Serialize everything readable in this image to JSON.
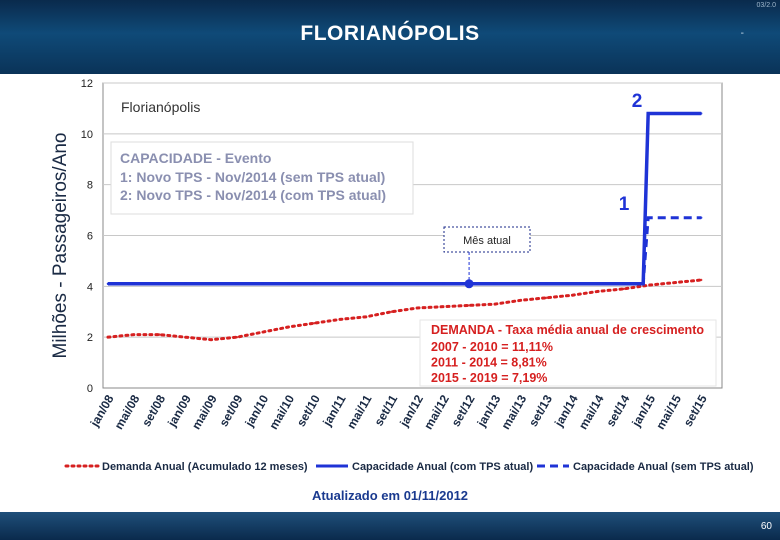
{
  "header": {
    "title": "FLORIANÓPOLIS",
    "dash": "-",
    "corner": "03/2.0"
  },
  "footer": {
    "page_number": "60"
  },
  "colors": {
    "capacity": "#1f33d6",
    "demand": "#d62020",
    "header_bg": "#0f4a78",
    "text_blue": "#1a3a8f"
  },
  "chart_data": {
    "type": "line",
    "ylabel": "Milhões - Passageiros/Ano",
    "ylim": [
      0,
      12
    ],
    "yticks": [
      0,
      2,
      4,
      6,
      8,
      10,
      12
    ],
    "grid": true,
    "x": [
      "jan/08",
      "mai/08",
      "set/08",
      "jan/09",
      "mai/09",
      "set/09",
      "jan/10",
      "mai/10",
      "set/10",
      "jan/11",
      "mai/11",
      "set/11",
      "jan/12",
      "mai/12",
      "set/12",
      "jan/13",
      "mai/13",
      "set/13",
      "jan/14",
      "mai/14",
      "set/14",
      "jan/15",
      "mai/15",
      "set/15"
    ],
    "series": [
      {
        "name": "Demanda Anual (Acumulado 12 meses)",
        "style": "dotted",
        "color": "#d62020",
        "values": [
          2.0,
          2.1,
          2.1,
          2.0,
          1.9,
          2.0,
          2.2,
          2.4,
          2.55,
          2.7,
          2.8,
          3.0,
          3.15,
          3.2,
          3.25,
          3.3,
          3.45,
          3.55,
          3.65,
          3.8,
          3.9,
          4.05,
          4.15,
          4.25
        ]
      },
      {
        "name": "Capacidade Anual (com TPS atual)",
        "style": "solid",
        "color": "#1f33d6",
        "values": [
          4.1,
          4.1,
          4.1,
          4.1,
          4.1,
          4.1,
          4.1,
          4.1,
          4.1,
          4.1,
          4.1,
          4.1,
          4.1,
          4.1,
          4.1,
          4.1,
          4.1,
          4.1,
          4.1,
          4.1,
          4.1,
          10.8,
          10.8,
          10.8
        ]
      },
      {
        "name": "Capacidade Anual (sem TPS atual)",
        "style": "dashed",
        "color": "#1f33d6",
        "values": [
          4.1,
          4.1,
          4.1,
          4.1,
          4.1,
          4.1,
          4.1,
          4.1,
          4.1,
          4.1,
          4.1,
          4.1,
          4.1,
          4.1,
          4.1,
          4.1,
          4.1,
          4.1,
          4.1,
          4.1,
          4.1,
          6.7,
          6.7,
          6.7
        ]
      }
    ],
    "current_month_point": {
      "x": "set/12",
      "y": 4.1
    },
    "chart_label": "Florianópolis",
    "event_box": {
      "title": "CAPACIDADE - Evento",
      "lines": [
        "1: Novo TPS - Nov/2014 (sem TPS atual)",
        "2: Novo TPS - Nov/2014 (com TPS atual)"
      ]
    },
    "marker_labels": [
      "2",
      "1"
    ],
    "current_month_label": "Mês atual",
    "demand_box": {
      "title": "DEMANDA - Taxa média anual de crescimento",
      "lines": [
        "2007 - 2010 = 11,11%",
        "2011 - 2014 =  8,81%",
        "2015 - 2019 =  7,19%"
      ]
    },
    "legend": [
      {
        "label": "Demanda Anual (Acumulado 12 meses)",
        "style": "dotted",
        "color": "#d62020"
      },
      {
        "label": "Capacidade Anual (com TPS atual)",
        "style": "solid",
        "color": "#1f33d6"
      },
      {
        "label": "Capacidade Anual (sem TPS atual)",
        "style": "dashed",
        "color": "#1f33d6"
      }
    ],
    "updated_note": "Atualizado em 01/11/2012"
  }
}
